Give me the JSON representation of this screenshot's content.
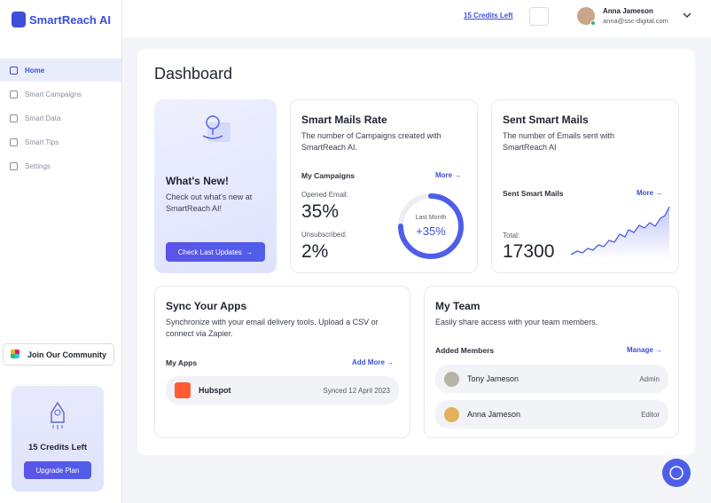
{
  "sidebar": {
    "brand": "SmartReach AI",
    "nav": [
      "Home",
      "Smart Campaigns",
      "Smart Data",
      "Smart Tips",
      "Settings"
    ],
    "community": "Join Our Community",
    "credits": "15 Credits Left",
    "upgrade": "Upgrade Plan"
  },
  "header": {
    "credits_link": "15 Credits Left",
    "user_name": "Anna Jameson",
    "user_email": "anna@ssc-digital.com"
  },
  "main": {
    "title": "Dashboard",
    "whats_new": {
      "title": "What's New!",
      "text": "Check out what's new at SmartReach AI!",
      "button": "Check Last Updates"
    },
    "mails_rate": {
      "title": "Smart Mails Rate",
      "text": "The number of Campaigns created with SmartReach AI.",
      "section": "My Campaigns",
      "more": "More",
      "opened_label": "Opened Email:",
      "opened_value": "35%",
      "unsub_label": "Unsubscribed:",
      "unsub_value": "2%",
      "ring_label": "Last Month",
      "ring_value": "+35%"
    },
    "sent_mails": {
      "title": "Sent Smart Mails",
      "text": "The number of Emails sent with SmartReach AI",
      "section": "Sent Smart Mails",
      "more": "More",
      "total_label": "Total:",
      "total_value": "17300"
    },
    "sync_apps": {
      "title": "Sync Your Apps",
      "text": "Synchronize with your email delivery tools. Upload a CSV or connect via Zapier.",
      "section": "My Apps",
      "add_more": "Add More",
      "apps": [
        {
          "name": "Hubspot",
          "status": "Synced 12 April 2023"
        }
      ]
    },
    "my_team": {
      "title": "My Team",
      "text": "Easily share access with your team members.",
      "section": "Added Members",
      "manage": "Manage",
      "members": [
        {
          "name": "Tony Jameson",
          "role": "Admin"
        },
        {
          "name": "Anna Jameson",
          "role": "Editor"
        }
      ]
    }
  }
}
